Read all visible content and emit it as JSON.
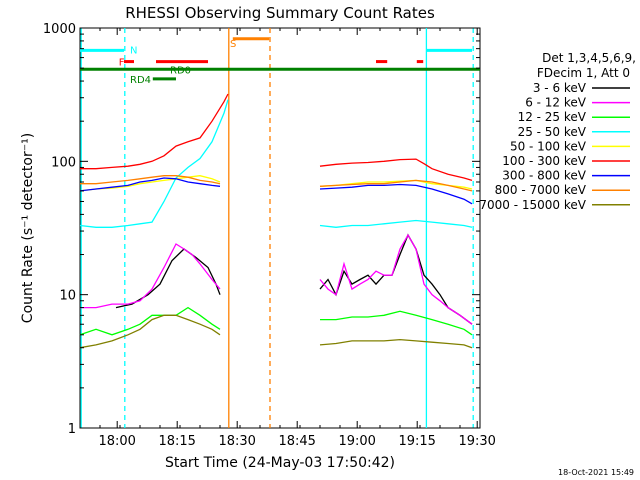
{
  "chart_data": {
    "type": "line",
    "title": "RHESSI Observing Summary Count Rates",
    "xlabel": "Start Time (24-May-03 17:50:42)",
    "ylabel": "Count Rate (s⁻¹ detector⁻¹)",
    "x_unit": "minutes after 17:50:42",
    "xlim": [
      0,
      100
    ],
    "ylim": [
      1,
      1000
    ],
    "y_scale": "log",
    "x_ticks": [
      {
        "x": 9.3,
        "label": "18:00"
      },
      {
        "x": 24.3,
        "label": "18:15"
      },
      {
        "x": 39.3,
        "label": "18:30"
      },
      {
        "x": 54.3,
        "label": "18:45"
      },
      {
        "x": 69.3,
        "label": "19:00"
      },
      {
        "x": 84.3,
        "label": "19:15"
      },
      {
        "x": 99.3,
        "label": "19:30"
      }
    ],
    "y_ticks": [
      {
        "y": 1,
        "label": "1"
      },
      {
        "y": 10,
        "label": "10"
      },
      {
        "y": 100,
        "label": "100"
      },
      {
        "y": 1000,
        "label": "1000"
      }
    ],
    "grid": false,
    "legend_position": "right",
    "legend_header": [
      "Det 1,3,4,5,6,9,",
      "FDecim 1, Att 0"
    ],
    "footer_date": "18-Oct-2021 15:49",
    "series": [
      {
        "name": "3 - 6 keV",
        "color": "#000000",
        "points": [
          [
            9,
            8
          ],
          [
            13,
            8.5
          ],
          [
            17,
            10
          ],
          [
            20,
            12
          ],
          [
            23,
            18
          ],
          [
            26,
            22
          ],
          [
            29,
            19
          ],
          [
            32,
            16
          ],
          [
            34,
            12
          ],
          [
            35,
            10
          ],
          [
            60,
            11
          ],
          [
            62,
            13
          ],
          [
            64,
            10
          ],
          [
            66,
            15
          ],
          [
            68,
            12
          ],
          [
            70,
            13
          ],
          [
            72,
            14
          ],
          [
            74,
            12
          ],
          [
            76,
            14
          ],
          [
            78,
            14
          ],
          [
            80,
            20
          ],
          [
            82,
            28
          ],
          [
            84,
            22
          ],
          [
            86,
            14
          ],
          [
            88,
            12
          ],
          [
            90,
            10
          ],
          [
            92,
            8
          ],
          [
            95,
            7
          ],
          [
            98,
            6
          ]
        ]
      },
      {
        "name": "6 - 12 keV",
        "color": "#ff00ff",
        "points": [
          [
            0,
            8
          ],
          [
            4,
            8
          ],
          [
            8,
            8.5
          ],
          [
            12,
            8.5
          ],
          [
            15,
            9
          ],
          [
            18,
            11
          ],
          [
            21,
            16
          ],
          [
            24,
            24
          ],
          [
            26,
            22
          ],
          [
            28,
            20
          ],
          [
            30,
            17
          ],
          [
            33,
            13
          ],
          [
            35,
            11
          ],
          [
            60,
            13
          ],
          [
            62,
            11
          ],
          [
            64,
            10
          ],
          [
            66,
            17
          ],
          [
            68,
            11
          ],
          [
            70,
            12
          ],
          [
            72,
            13
          ],
          [
            74,
            15
          ],
          [
            76,
            14
          ],
          [
            78,
            14
          ],
          [
            80,
            22
          ],
          [
            82,
            28
          ],
          [
            84,
            22
          ],
          [
            86,
            12
          ],
          [
            88,
            10
          ],
          [
            90,
            9
          ],
          [
            92,
            8
          ],
          [
            95,
            7
          ],
          [
            98,
            6
          ]
        ]
      },
      {
        "name": "12 - 25 keV",
        "color": "#00ff00",
        "points": [
          [
            0,
            5
          ],
          [
            4,
            5.5
          ],
          [
            8,
            5
          ],
          [
            12,
            5.5
          ],
          [
            15,
            6
          ],
          [
            18,
            7
          ],
          [
            21,
            7
          ],
          [
            24,
            7
          ],
          [
            27,
            8
          ],
          [
            30,
            7
          ],
          [
            33,
            6
          ],
          [
            35,
            5.5
          ],
          [
            60,
            6.5
          ],
          [
            64,
            6.5
          ],
          [
            68,
            6.8
          ],
          [
            72,
            6.8
          ],
          [
            76,
            7
          ],
          [
            80,
            7.5
          ],
          [
            84,
            7
          ],
          [
            88,
            6.5
          ],
          [
            92,
            6
          ],
          [
            96,
            5.5
          ],
          [
            98,
            5
          ]
        ]
      },
      {
        "name": "25 - 50 keV",
        "color": "#00ffff",
        "points": [
          [
            0,
            33
          ],
          [
            4,
            32
          ],
          [
            8,
            32
          ],
          [
            12,
            33
          ],
          [
            15,
            34
          ],
          [
            18,
            35
          ],
          [
            21,
            50
          ],
          [
            24,
            75
          ],
          [
            27,
            90
          ],
          [
            30,
            105
          ],
          [
            33,
            140
          ],
          [
            36,
            230
          ],
          [
            37,
            290
          ],
          [
            60,
            33
          ],
          [
            64,
            32
          ],
          [
            68,
            33
          ],
          [
            72,
            33
          ],
          [
            76,
            34
          ],
          [
            80,
            35
          ],
          [
            84,
            36
          ],
          [
            88,
            35
          ],
          [
            92,
            34
          ],
          [
            96,
            33
          ],
          [
            98,
            32
          ]
        ]
      },
      {
        "name": "50 - 100 keV",
        "color": "#ffff00",
        "points": [
          [
            0,
            60
          ],
          [
            4,
            62
          ],
          [
            8,
            63
          ],
          [
            12,
            65
          ],
          [
            15,
            68
          ],
          [
            18,
            70
          ],
          [
            21,
            72
          ],
          [
            24,
            74
          ],
          [
            27,
            76
          ],
          [
            30,
            78
          ],
          [
            33,
            74
          ],
          [
            35,
            70
          ],
          [
            60,
            65
          ],
          [
            64,
            66
          ],
          [
            68,
            68
          ],
          [
            72,
            70
          ],
          [
            76,
            70
          ],
          [
            80,
            71
          ],
          [
            84,
            72
          ],
          [
            88,
            68
          ],
          [
            92,
            66
          ],
          [
            96,
            64
          ],
          [
            98,
            62
          ]
        ]
      },
      {
        "name": "100 - 300 keV",
        "color": "#ff0000",
        "points": [
          [
            0,
            88
          ],
          [
            4,
            88
          ],
          [
            8,
            90
          ],
          [
            12,
            92
          ],
          [
            15,
            95
          ],
          [
            18,
            100
          ],
          [
            21,
            110
          ],
          [
            24,
            130
          ],
          [
            27,
            140
          ],
          [
            30,
            150
          ],
          [
            33,
            200
          ],
          [
            36,
            280
          ],
          [
            37,
            320
          ],
          [
            60,
            92
          ],
          [
            64,
            95
          ],
          [
            68,
            97
          ],
          [
            72,
            98
          ],
          [
            76,
            100
          ],
          [
            80,
            103
          ],
          [
            84,
            104
          ],
          [
            86,
            96
          ],
          [
            88,
            88
          ],
          [
            92,
            80
          ],
          [
            96,
            75
          ],
          [
            98,
            72
          ]
        ]
      },
      {
        "name": "300 - 800 keV",
        "color": "#0000ff",
        "points": [
          [
            0,
            60
          ],
          [
            4,
            62
          ],
          [
            8,
            64
          ],
          [
            12,
            66
          ],
          [
            15,
            70
          ],
          [
            18,
            72
          ],
          [
            21,
            75
          ],
          [
            24,
            74
          ],
          [
            27,
            70
          ],
          [
            30,
            68
          ],
          [
            33,
            66
          ],
          [
            35,
            65
          ],
          [
            60,
            62
          ],
          [
            64,
            63
          ],
          [
            68,
            64
          ],
          [
            72,
            66
          ],
          [
            76,
            66
          ],
          [
            80,
            67
          ],
          [
            84,
            66
          ],
          [
            88,
            62
          ],
          [
            92,
            57
          ],
          [
            96,
            52
          ],
          [
            98,
            48
          ]
        ]
      },
      {
        "name": "800 - 7000 keV",
        "color": "#ff8000",
        "points": [
          [
            0,
            68
          ],
          [
            4,
            68
          ],
          [
            8,
            70
          ],
          [
            12,
            72
          ],
          [
            15,
            74
          ],
          [
            18,
            76
          ],
          [
            21,
            78
          ],
          [
            24,
            78
          ],
          [
            27,
            76
          ],
          [
            30,
            72
          ],
          [
            33,
            70
          ],
          [
            35,
            68
          ],
          [
            60,
            65
          ],
          [
            64,
            66
          ],
          [
            68,
            67
          ],
          [
            72,
            68
          ],
          [
            76,
            68
          ],
          [
            80,
            70
          ],
          [
            84,
            72
          ],
          [
            88,
            70
          ],
          [
            92,
            66
          ],
          [
            96,
            62
          ],
          [
            98,
            60
          ]
        ]
      },
      {
        "name": "7000 - 15000 keV",
        "color": "#808000",
        "points": [
          [
            0,
            4
          ],
          [
            4,
            4.2
          ],
          [
            8,
            4.5
          ],
          [
            12,
            5
          ],
          [
            15,
            5.5
          ],
          [
            18,
            6.5
          ],
          [
            21,
            7
          ],
          [
            24,
            7
          ],
          [
            27,
            6.5
          ],
          [
            30,
            6
          ],
          [
            33,
            5.5
          ],
          [
            35,
            5
          ],
          [
            60,
            4.2
          ],
          [
            64,
            4.3
          ],
          [
            68,
            4.5
          ],
          [
            72,
            4.5
          ],
          [
            76,
            4.5
          ],
          [
            80,
            4.6
          ],
          [
            84,
            4.5
          ],
          [
            88,
            4.4
          ],
          [
            92,
            4.3
          ],
          [
            96,
            4.2
          ],
          [
            98,
            4
          ]
        ]
      }
    ],
    "annotations": {
      "labels": [
        {
          "text": "N",
          "color": "#00ffff",
          "x": 12.5,
          "y": 690
        },
        {
          "text": "F",
          "color": "#ff0000",
          "x": 9.7,
          "y": 560
        },
        {
          "text": "RD0",
          "color": "#008000",
          "x": 22.5,
          "y": 490
        },
        {
          "text": "RD4",
          "color": "#008000",
          "x": 12.5,
          "y": 415
        },
        {
          "text": "S",
          "color": "#ff8000",
          "x": 37.5,
          "y": 770
        }
      ],
      "bars": [
        {
          "color": "#00ffff",
          "x1": 0,
          "x2": 11,
          "y": 680
        },
        {
          "color": "#00ffff",
          "x1": 86.5,
          "x2": 98,
          "y": 680
        },
        {
          "color": "#ff0000",
          "x1": 11,
          "x2": 13.5,
          "y": 560
        },
        {
          "color": "#ff0000",
          "x1": 19,
          "x2": 32,
          "y": 560
        },
        {
          "color": "#ff0000",
          "x1": 74,
          "x2": 76.8,
          "y": 560
        },
        {
          "color": "#ff0000",
          "x1": 84.2,
          "x2": 85.8,
          "y": 560
        },
        {
          "color": "#ff8000",
          "x1": 38.2,
          "x2": 47.3,
          "y": 830
        },
        {
          "color": "#008000",
          "x1": 0,
          "x2": 100,
          "y": 490
        },
        {
          "color": "#008000",
          "x1": 18.2,
          "x2": 24,
          "y": 415
        }
      ],
      "vlines": [
        {
          "color": "#00ffff",
          "x": 0.3,
          "dashed": false
        },
        {
          "color": "#00ffff",
          "x": 11.2,
          "dashed": true
        },
        {
          "color": "#ff8000",
          "x": 37.2,
          "dashed": false
        },
        {
          "color": "#ff8000",
          "x": 47.5,
          "dashed": true
        },
        {
          "color": "#00ffff",
          "x": 86.6,
          "dashed": false
        },
        {
          "color": "#00ffff",
          "x": 98.3,
          "dashed": true
        }
      ]
    }
  }
}
